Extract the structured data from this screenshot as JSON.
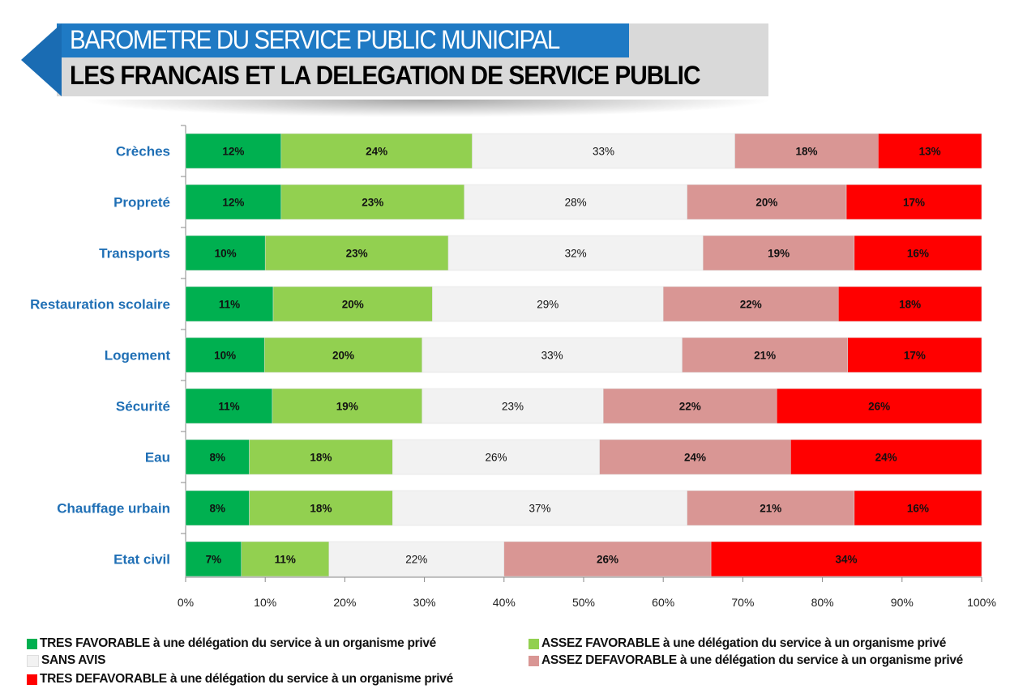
{
  "header": {
    "title": "BAROMETRE DU SERVICE PUBLIC MUNICIPAL",
    "subtitle": "LES FRANCAIS ET LA DELEGATION DE SERVICE PUBLIC"
  },
  "chart_data": {
    "type": "bar",
    "orientation": "horizontal",
    "stacked": "percent",
    "categories": [
      "Crèches",
      "Propreté",
      "Transports",
      "Restauration scolaire",
      "Logement",
      "Sécurité",
      "Eau",
      "Chauffage urbain",
      "Etat civil"
    ],
    "series": [
      {
        "name": "TRES FAVORABLE à une délégation du service à un organisme privé",
        "color": "#00b050",
        "values": [
          12,
          12,
          10,
          11,
          10,
          11,
          8,
          8,
          7
        ]
      },
      {
        "name": "ASSEZ FAVORABLE à une délégation du service à un organisme privé",
        "color": "#92d050",
        "values": [
          24,
          23,
          23,
          20,
          20,
          19,
          18,
          18,
          11
        ]
      },
      {
        "name": "SANS AVIS",
        "color": "#f2f2f2",
        "values": [
          33,
          28,
          32,
          29,
          33,
          23,
          26,
          37,
          22
        ]
      },
      {
        "name": "ASSEZ DEFAVORABLE à une délégation du service à un organisme privé",
        "color": "#d99694",
        "values": [
          18,
          20,
          19,
          22,
          21,
          22,
          24,
          21,
          26
        ]
      },
      {
        "name": "TRES DEFAVORABLE à une délégation du service à un organisme privé",
        "color": "#ff0000",
        "values": [
          13,
          17,
          16,
          18,
          17,
          26,
          24,
          16,
          34
        ]
      }
    ],
    "value_suffix": "%",
    "xlim": [
      0,
      100
    ],
    "xticks": [
      "0%",
      "10%",
      "20%",
      "30%",
      "40%",
      "50%",
      "60%",
      "70%",
      "80%",
      "90%",
      "100%"
    ],
    "category_label_color": "#1f6fb5",
    "grid": false,
    "legend": "bottom"
  }
}
